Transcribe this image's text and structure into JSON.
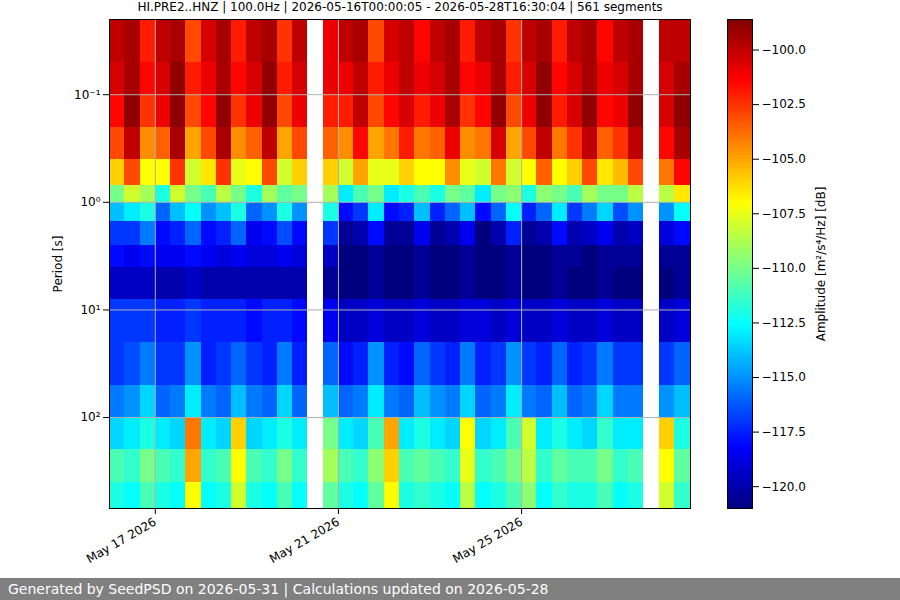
{
  "chart_data": {
    "type": "heatmap",
    "title": "HI.PRE2..HNZ | 100.0Hz | 2026-05-16T00:00:05 - 2026-05-28T16:30:04 | 561 segments",
    "caption": "Generated by SeedPSD on 2026-05-31 | Calculations updated on 2026-05-28",
    "y_label": "Period [s]",
    "x": [
      "2026-05-16T00:00:05Z",
      "2026-05-16T08:00Z",
      "2026-05-16T16:00Z",
      "2026-05-17T00:00Z",
      "2026-05-17T08:00Z",
      "2026-05-17T16:00Z",
      "2026-05-18T00:00Z",
      "2026-05-18T08:00Z",
      "2026-05-18T16:00Z",
      "2026-05-19T00:00Z",
      "2026-05-19T08:00Z",
      "2026-05-19T16:00Z",
      "2026-05-20T00:00Z",
      "2026-05-20T08:00Z",
      "2026-05-20T16:00Z",
      "2026-05-21T00:00Z",
      "2026-05-21T08:00Z",
      "2026-05-21T16:00Z",
      "2026-05-22T00:00Z",
      "2026-05-22T08:00Z",
      "2026-05-22T16:00Z",
      "2026-05-23T00:00Z",
      "2026-05-23T08:00Z",
      "2026-05-23T16:00Z",
      "2026-05-24T00:00Z",
      "2026-05-24T08:00Z",
      "2026-05-24T16:00Z",
      "2026-05-25T00:00Z",
      "2026-05-25T08:00Z",
      "2026-05-25T16:00Z",
      "2026-05-26T00:00Z",
      "2026-05-26T08:00Z",
      "2026-05-26T16:00Z",
      "2026-05-27T00:00Z",
      "2026-05-27T08:00Z",
      "2026-05-27T16:00Z",
      "2026-05-28T00:00Z",
      "2026-05-28T08:00Z",
      "2026-05-28T16:30:04Z"
    ],
    "y": [
      0.02,
      0.05,
      0.1,
      0.2,
      0.4,
      0.7,
      1,
      1.5,
      2.5,
      4,
      8,
      20,
      50,
      100,
      200,
      400,
      700
    ],
    "cells": [
      [
        -100,
        -99.5,
        -102,
        -100,
        -99.5,
        -103,
        -100.5,
        -99.5,
        -102,
        -100,
        -99.5,
        -102.5,
        -100,
        null,
        -101,
        -100,
        -99.5,
        -103,
        -100.5,
        -100,
        -101.5,
        -100,
        -99.5,
        -102,
        -100,
        -99.5,
        -102.5,
        -100,
        -99.5,
        -102,
        -100,
        -99.5,
        -101.5,
        -100,
        -99.5,
        null,
        -100,
        -100
      ],
      [
        -100.5,
        -99.5,
        -101.5,
        -100.5,
        -99,
        -102,
        -101,
        -99.5,
        -101.5,
        -100.5,
        -99,
        -102,
        -100.5,
        null,
        -101,
        -101,
        -100,
        -102,
        -101,
        -100,
        -101,
        -100.5,
        -99.5,
        -101.5,
        -101,
        -99.5,
        -102,
        -100.5,
        -99,
        -101.5,
        -100.5,
        -99.5,
        -101,
        -100.5,
        -99.5,
        null,
        -100.5,
        -99.5
      ],
      [
        -101.5,
        -99,
        -102.5,
        -101,
        -98.9,
        -103,
        -101.5,
        -99,
        -102.5,
        -101,
        -99,
        -103,
        -101,
        null,
        -102,
        -102,
        -100,
        -103,
        -101.5,
        -100.5,
        -102,
        -101,
        -99.5,
        -102.5,
        -101.5,
        -99,
        -103,
        -101,
        -99,
        -102,
        -100.5,
        -99,
        -101.5,
        -101,
        -99,
        null,
        -100.5,
        -99
      ],
      [
        -103,
        -100,
        -104.5,
        -103.5,
        -99.5,
        -105,
        -103,
        -99.5,
        -104.5,
        -103.5,
        -100,
        -105,
        -103,
        null,
        -103.5,
        -104.5,
        -101.5,
        -105,
        -104,
        -102,
        -104,
        -103.5,
        -101,
        -104.5,
        -104,
        -100.5,
        -105,
        -103,
        -100,
        -104,
        -102.5,
        -100,
        -103.5,
        -102.5,
        -100,
        null,
        -101.5,
        -99.5
      ],
      [
        -106,
        -103,
        -107,
        -107,
        -102.5,
        -108,
        -106.5,
        -102.5,
        -107.5,
        -107,
        -103,
        -108,
        -106,
        null,
        -106,
        -108,
        -105,
        -107.5,
        -107.5,
        -106,
        -107,
        -107,
        -104.5,
        -107.5,
        -108,
        -104,
        -108,
        -107,
        -103.5,
        -107,
        -106,
        -103,
        -106.5,
        -105.5,
        -103,
        null,
        -104,
        -101.5
      ],
      [
        -110,
        -108,
        -109,
        -112,
        -108,
        -110,
        -111,
        -108.5,
        -110,
        -112,
        -109,
        -110.5,
        -110,
        null,
        -109,
        -113,
        -111,
        -110,
        -113,
        -112,
        -111,
        -112,
        -110,
        -110.5,
        -113,
        -110,
        -109.5,
        -112,
        -109.5,
        -110,
        -111,
        -109,
        -110,
        -110,
        -108.5,
        null,
        -108.5,
        -106.5
      ],
      [
        -114,
        -113,
        -112,
        -116,
        -114,
        -112.5,
        -115,
        -114,
        -112,
        -116,
        -115,
        -112,
        -115,
        null,
        -112,
        -118,
        -117,
        -113,
        -118,
        -117.5,
        -114,
        -117.5,
        -116,
        -114,
        -118,
        -116,
        -112.5,
        -117.5,
        -116,
        -113,
        -117,
        -115.5,
        -113.5,
        -116.5,
        -115,
        null,
        -115,
        -112.5
      ],
      [
        -117,
        -117,
        -115.5,
        -118,
        -117.5,
        -116,
        -118,
        -117.5,
        -116,
        -118.5,
        -118,
        -116.5,
        -118,
        null,
        -117,
        -120.5,
        -120,
        -118,
        -120.5,
        -120.5,
        -118.5,
        -120.5,
        -120,
        -118.5,
        -121,
        -120,
        -117.5,
        -120.5,
        -120,
        -118,
        -120,
        -119.5,
        -118.5,
        -120,
        -119.5,
        null,
        -119,
        -118
      ],
      [
        -118,
        -118.5,
        -118,
        -118.5,
        -118.5,
        -118,
        -118.5,
        -119,
        -118.5,
        -119,
        -119,
        -118.5,
        -119,
        null,
        -119.5,
        -121,
        -121,
        -120.5,
        -121,
        -121,
        -120.5,
        -121,
        -121,
        -120.5,
        -121,
        -121,
        -120.5,
        -121,
        -121,
        -120.5,
        -120.5,
        -121,
        -120.5,
        -120.5,
        -120.5,
        null,
        -120.5,
        -120.5
      ],
      [
        -119.5,
        -119.5,
        -119.5,
        -120,
        -120,
        -119.5,
        -120,
        -120,
        -120,
        -120,
        -120,
        -120,
        -120,
        null,
        -120.5,
        -121,
        -121,
        -120.5,
        -121,
        -121,
        -120.5,
        -121,
        -121,
        -120.5,
        -121,
        -121,
        -120.5,
        -121,
        -121,
        -120.5,
        -121,
        -121,
        -120.5,
        -121,
        -121,
        null,
        -121,
        -120.5
      ],
      [
        -117,
        -117,
        -117,
        -117.5,
        -117.5,
        -117,
        -117.5,
        -117.5,
        -117.5,
        -118,
        -117.5,
        -117.5,
        -118,
        null,
        -118.5,
        -119.5,
        -119.5,
        -119,
        -119.5,
        -119.5,
        -119,
        -119.5,
        -119.5,
        -119,
        -119,
        -119.5,
        -119,
        -119.5,
        -119.5,
        -119,
        -119.5,
        -119.5,
        -119,
        -119.5,
        -119.5,
        null,
        -119.5,
        -119
      ],
      [
        -117,
        -116.5,
        -115.5,
        -117,
        -117,
        -115,
        -117.5,
        -117,
        -116,
        -117,
        -117.5,
        -115.5,
        -117.5,
        null,
        -116,
        -118,
        -117.5,
        -115,
        -117.5,
        -118,
        -116,
        -117,
        -117.5,
        -115.5,
        -117.5,
        -117,
        -115,
        -117,
        -117.5,
        -116,
        -117.5,
        -117,
        -115.5,
        -117,
        -117,
        null,
        -117,
        -116
      ],
      [
        -115.5,
        -115,
        -113.5,
        -116,
        -115.5,
        -113,
        -115.5,
        -116,
        -114,
        -115.5,
        -116,
        -113.5,
        -116,
        null,
        -114,
        -116,
        -115.5,
        -113,
        -115.5,
        -116,
        -114,
        -115,
        -115.5,
        -113.5,
        -116,
        -115.5,
        -113,
        -115.5,
        -116,
        -114,
        -116,
        -115.5,
        -113.5,
        -115.5,
        -115.5,
        null,
        -115,
        -114
      ],
      [
        -113.5,
        -113,
        -112,
        -113,
        -113.5,
        -104,
        -113,
        -113.5,
        -106,
        -113.5,
        -113,
        -112,
        -113,
        null,
        -110,
        -113,
        -113.5,
        -111,
        -105,
        -113,
        -112,
        -113,
        -113.5,
        -107,
        -113.5,
        -113,
        -111,
        -108,
        -113,
        -112,
        -113,
        -113.5,
        -111.5,
        -113,
        -113,
        null,
        -106,
        -112
      ],
      [
        -111,
        -111.5,
        -110,
        -111,
        -111.5,
        -105,
        -111.5,
        -111,
        -107,
        -111,
        -111.5,
        -110,
        -111.5,
        null,
        -109,
        -111,
        -111.5,
        -109.5,
        -106,
        -111,
        -110.5,
        -111,
        -111.5,
        -107.5,
        -111.5,
        -111,
        -110,
        -108.5,
        -111.5,
        -110.5,
        -111,
        -111,
        -110,
        -111.5,
        -111,
        null,
        -107,
        -110.5
      ],
      [
        -112,
        -112.5,
        -111,
        -112,
        -112.5,
        -107,
        -112.5,
        -112,
        -108,
        -112,
        -112.5,
        -111,
        -112.5,
        null,
        -110.5,
        -112,
        -112.5,
        -110.5,
        -107,
        -112,
        -111.5,
        -112,
        -112.5,
        -108.5,
        -112.5,
        -112,
        -111,
        -109.5,
        -112.5,
        -111.5,
        -112,
        -112,
        -111,
        -112.5,
        -112,
        null,
        -108,
        -111.5
      ]
    ],
    "xlim": [
      "2026-05-16T00:00:05Z",
      "2026-05-28T16:30:04Z"
    ],
    "xticks": [
      {
        "value": "2026-05-17T00:00Z",
        "label": "May 17 2026"
      },
      {
        "value": "2026-05-21T00:00Z",
        "label": "May 21 2026"
      },
      {
        "value": "2026-05-25T00:00Z",
        "label": "May 25 2026"
      }
    ],
    "ylim": [
      0.02,
      700
    ],
    "yticks": [
      {
        "value": 0.1,
        "label": "10⁻¹"
      },
      {
        "value": 1,
        "label": "10⁰"
      },
      {
        "value": 10,
        "label": "10¹"
      },
      {
        "value": 100,
        "label": "10²"
      }
    ],
    "log": "y",
    "grid": true,
    "colorbar": {
      "label": "Amplitude [m²/s⁴/Hz] [dB]",
      "range": [
        -121,
        -98.6
      ],
      "ticks": [
        {
          "value": -100,
          "label": "−100.0"
        },
        {
          "value": -102.5,
          "label": "−102.5"
        },
        {
          "value": -105,
          "label": "−105.0"
        },
        {
          "value": -107.5,
          "label": "−107.5"
        },
        {
          "value": -110,
          "label": "−110.0"
        },
        {
          "value": -112.5,
          "label": "−112.5"
        },
        {
          "value": -115,
          "label": "−115.0"
        },
        {
          "value": -117.5,
          "label": "−117.5"
        },
        {
          "value": -120,
          "label": "−120.0"
        }
      ]
    }
  }
}
